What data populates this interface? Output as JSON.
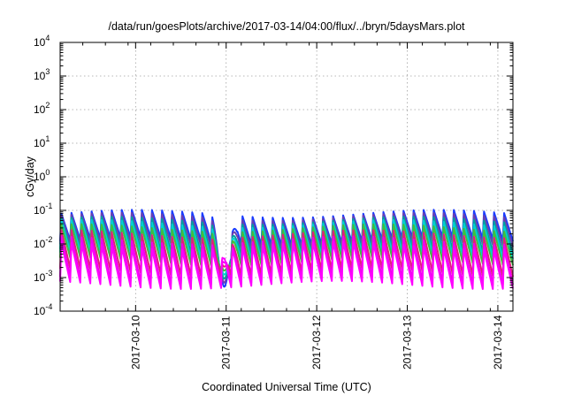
{
  "chart_data": {
    "type": "line",
    "title": "/data/run/goesPlots/archive/2017-03-14/04:00/flux/../bryn/5daysMars.plot",
    "xlabel": "Coordinated Universal Time (UTC)",
    "ylabel": "cGy/day",
    "x_range": [
      "2017-03-09T04:00",
      "2017-03-14T04:00"
    ],
    "y_scale": "log",
    "ylim": [
      0.0001,
      10000
    ],
    "y_ticks": [
      {
        "base": "10",
        "exp": "-4"
      },
      {
        "base": "10",
        "exp": "-3"
      },
      {
        "base": "10",
        "exp": "-2"
      },
      {
        "base": "10",
        "exp": "-1"
      },
      {
        "base": "10",
        "exp": "0"
      },
      {
        "base": "10",
        "exp": "1"
      },
      {
        "base": "10",
        "exp": "2"
      },
      {
        "base": "10",
        "exp": "3"
      },
      {
        "base": "10",
        "exp": "4"
      }
    ],
    "x_ticks": [
      "2017-03-10",
      "2017-03-11",
      "2017-03-12",
      "2017-03-13",
      "2017-03-14"
    ],
    "grid": true,
    "legend": "none",
    "sawtooth_cycles": 45,
    "dip": {
      "time": "2017-03-11T00:00",
      "min_value": 0.00015
    },
    "series": [
      {
        "color": "#1a3cff",
        "peak": 0.08,
        "trough": 0.012
      },
      {
        "color": "#6a3fb0",
        "peak": 0.065,
        "trough": 0.009
      },
      {
        "color": "#00a0a0",
        "peak": 0.05,
        "trough": 0.006
      },
      {
        "color": "#00d0d0",
        "peak": 0.04,
        "trough": 0.0045
      },
      {
        "color": "#3fbf3f",
        "peak": 0.03,
        "trough": 0.003
      },
      {
        "color": "#e0207a",
        "peak": 0.02,
        "trough": 0.0014
      },
      {
        "color": "#ee00ee",
        "peak": 0.013,
        "trough": 0.0008
      },
      {
        "color": "#ff00ff",
        "peak": 0.009,
        "trough": 0.0006
      }
    ]
  }
}
